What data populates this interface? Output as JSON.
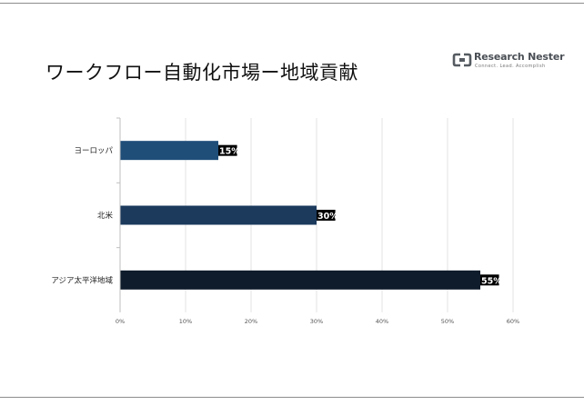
{
  "page": {
    "title": "ワークフロー自動化市場ー地域貢献"
  },
  "logo": {
    "name": "Research Nester",
    "tagline": "Connect. Lead. Accomplish"
  },
  "chart_data": {
    "type": "bar",
    "orientation": "horizontal",
    "categories": [
      "ヨーロッパ",
      "北米",
      "アジア太平洋地域"
    ],
    "values": [
      15,
      30,
      55
    ],
    "value_labels": [
      "15%",
      "30%",
      "55%"
    ],
    "bar_colors": [
      "#1f4e79",
      "#1b3a5c",
      "#0f1c2b"
    ],
    "xlim": [
      0,
      60
    ],
    "x_ticks": [
      0,
      10,
      20,
      30,
      40,
      50,
      60
    ],
    "x_tick_labels": [
      "0%",
      "10%",
      "20%",
      "30%",
      "40%",
      "50%",
      "60%"
    ],
    "grid": true,
    "title": "",
    "xlabel": "",
    "ylabel": ""
  }
}
